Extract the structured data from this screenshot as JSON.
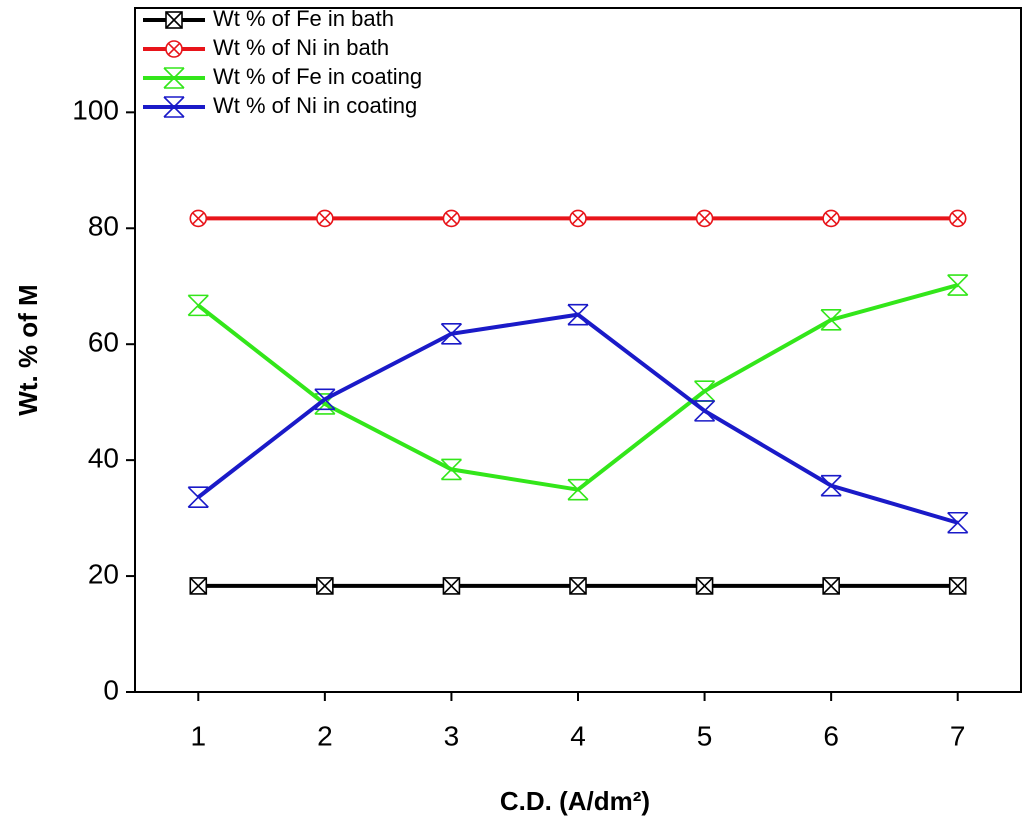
{
  "chart_data": {
    "type": "line",
    "x_label": "C.D. (A/dm²)",
    "y_label": "Wt. % of M",
    "x": [
      1,
      2,
      3,
      4,
      5,
      6,
      7
    ],
    "xlim": [
      0.5,
      7.5
    ],
    "xticks": [
      1,
      2,
      3,
      4,
      5,
      6,
      7
    ],
    "ylim": [
      0,
      118
    ],
    "yticks": [
      0,
      20,
      40,
      60,
      80,
      100
    ],
    "grid": false,
    "legend": "upper left",
    "series": [
      {
        "name": "Wt % of Fe in bath",
        "color": "#000000",
        "marker": "square-x",
        "values": [
          18.3,
          18.3,
          18.3,
          18.3,
          18.3,
          18.3,
          18.3
        ]
      },
      {
        "name": "Wt % of Ni in bath",
        "color": "#e8141a",
        "marker": "circle-x",
        "values": [
          81.7,
          81.7,
          81.7,
          81.7,
          81.7,
          81.7,
          81.7
        ]
      },
      {
        "name": "Wt % of Fe in coating",
        "color": "#33e61a",
        "marker": "hourglass",
        "values": [
          66.7,
          49.7,
          38.4,
          34.9,
          51.9,
          64.2,
          70.2
        ]
      },
      {
        "name": "Wt % of Ni  in coating",
        "color": "#1a1ac8",
        "marker": "hourglass",
        "values": [
          33.6,
          50.5,
          61.8,
          65.1,
          48.5,
          35.6,
          29.2
        ]
      }
    ]
  }
}
